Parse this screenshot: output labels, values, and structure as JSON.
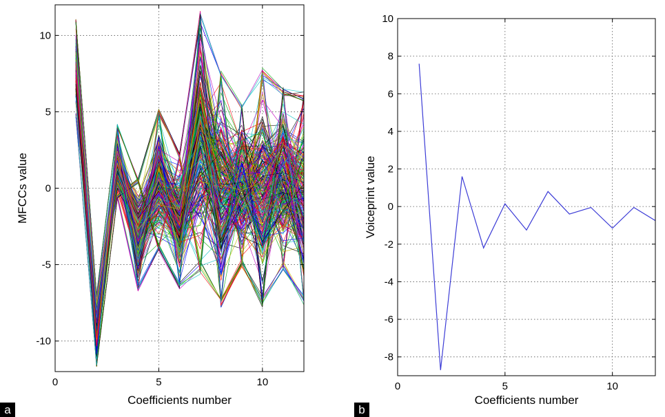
{
  "chart_data": [
    {
      "panel_label": "a",
      "type": "line",
      "xlabel": "Coefficients number",
      "ylabel": "MFCCs value",
      "xlim": [
        0,
        12
      ],
      "ylim": [
        -12,
        12
      ],
      "xticks": [
        0,
        5,
        10
      ],
      "yticks": [
        -10,
        -5,
        0,
        5,
        10
      ],
      "grid": true,
      "x": [
        1,
        2,
        3,
        4,
        5,
        6,
        7,
        8,
        9,
        10,
        11,
        12
      ],
      "series_count_estimate": 300,
      "envelope_upper": [
        11.2,
        -6.8,
        4.3,
        0.8,
        5.4,
        2.5,
        12.0,
        8.0,
        5.8,
        8.2,
        6.9,
        6.6
      ],
      "envelope_lower": [
        4.5,
        -11.8,
        -0.8,
        -6.9,
        -4.3,
        -6.8,
        -6.0,
        -8.2,
        -5.4,
        -8.2,
        -5.6,
        -8.0
      ],
      "colors": [
        "#0000ff",
        "#00aa00",
        "#ff0000",
        "#00bfbf",
        "#bf00bf",
        "#bfbf00",
        "#000000"
      ]
    },
    {
      "panel_label": "b",
      "type": "line",
      "xlabel": "Coefficients number",
      "ylabel": "Voiceprint value",
      "xlim": [
        0,
        12
      ],
      "ylim": [
        -9,
        10
      ],
      "xticks": [
        0,
        5,
        10
      ],
      "yticks": [
        -8,
        -6,
        -4,
        -2,
        0,
        2,
        4,
        6,
        8,
        10
      ],
      "grid": true,
      "series": [
        {
          "color": "#3b3bd6",
          "x": [
            1,
            2,
            3,
            4,
            5,
            6,
            7,
            8,
            9,
            10,
            11,
            12
          ],
          "y": [
            7.6,
            -8.7,
            1.6,
            -2.2,
            0.15,
            -1.25,
            0.8,
            -0.4,
            -0.05,
            -1.15,
            -0.05,
            -0.75
          ]
        }
      ]
    }
  ]
}
